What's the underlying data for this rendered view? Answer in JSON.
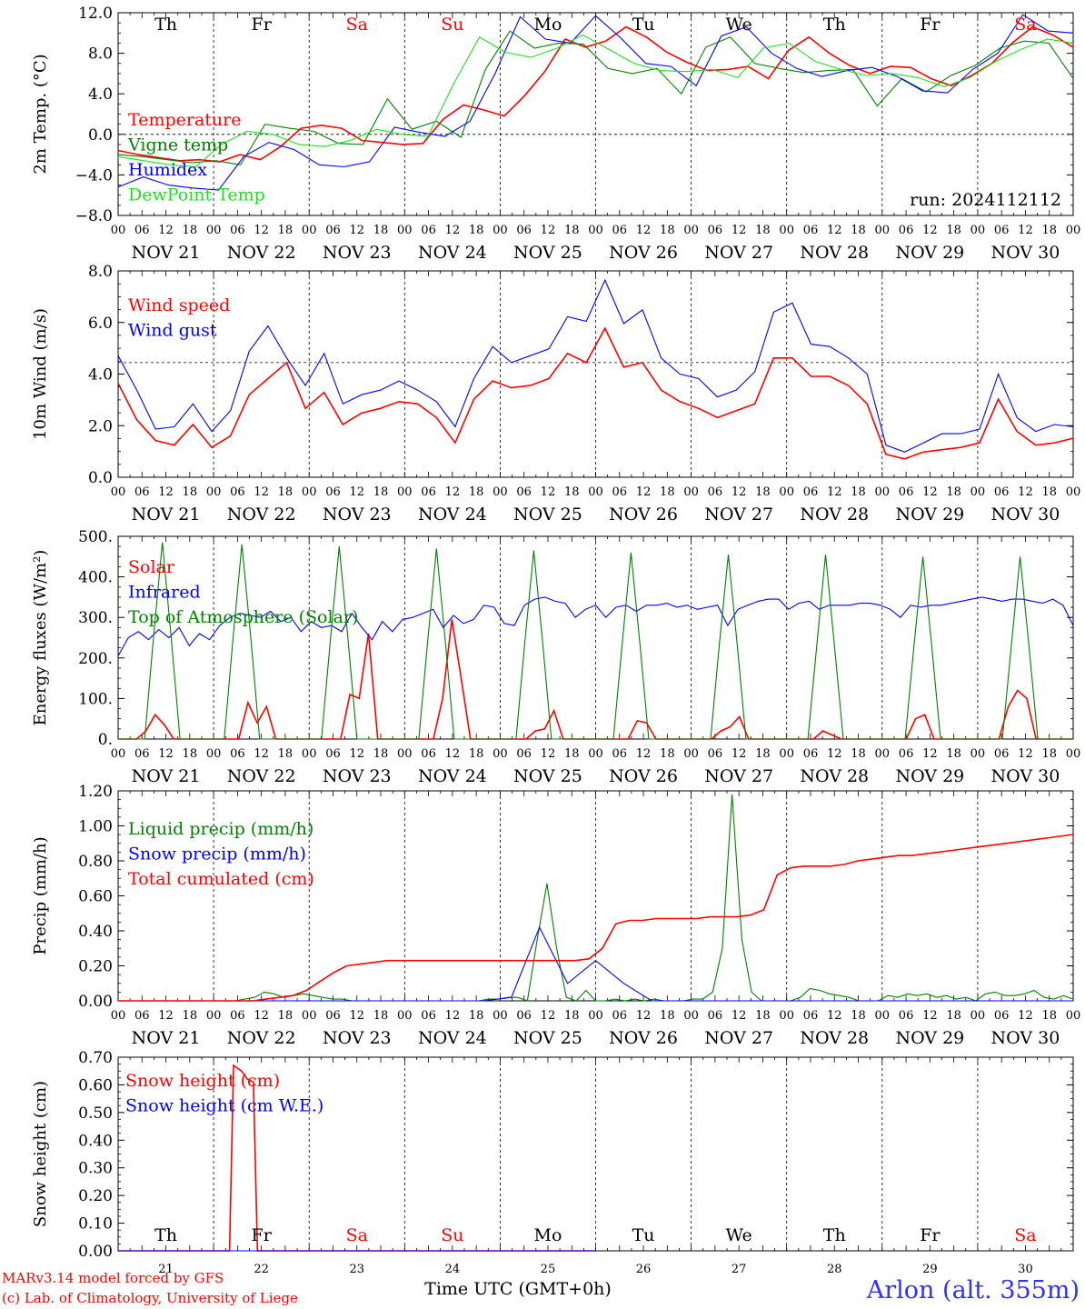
{
  "run_label": "run: 2024112112",
  "footer": {
    "model": "MARv3.14 model forced by GFS",
    "copyright": "(c) Lab. of Climatology, University of Liege",
    "xlabel": "Time UTC (GMT+0h)",
    "station": "Arlon (alt. 355m)"
  },
  "colors": {
    "red": "#ff0000",
    "green": "#008000",
    "blue": "#0000ff",
    "lightgreen": "#22dd22",
    "weekend": "#ff0000",
    "weekday": "#000000"
  },
  "chart_data": [
    {
      "id": "temperature",
      "type": "line",
      "ylabel": "2m Temp. (°C)",
      "ylim": [
        -8,
        12
      ],
      "yticks": [
        "−8.0",
        "−4.0",
        "0.0",
        "4.0",
        "8.0",
        "12.0"
      ],
      "ref_line": 0,
      "day_names": [
        "Th",
        "Fr",
        "Sa",
        "Su",
        "Mo",
        "Tu",
        "We",
        "Th",
        "Fr",
        "Sa"
      ],
      "weekend": [
        false,
        false,
        true,
        true,
        false,
        false,
        false,
        false,
        false,
        true
      ],
      "x_hours_per_point": 6,
      "series": [
        {
          "name": "Temperature",
          "color": "red",
          "values": [
            -1.6,
            -2.0,
            -2.3,
            -2.6,
            -2.5,
            -2.7,
            -2.0,
            -2.5,
            -1.2,
            0.6,
            0.9,
            0.6,
            -0.6,
            -0.8,
            -1.0,
            -0.9,
            1.5,
            2.9,
            2.4,
            1.8,
            3.8,
            6.2,
            9.4,
            8.6,
            9.2,
            10.6,
            9.6,
            8.1,
            7.1,
            6.3,
            6.4,
            6.7,
            5.5,
            8.3,
            9.6,
            8.0,
            6.8,
            6.0,
            6.7,
            6.6,
            5.5,
            4.8,
            5.8,
            7.0,
            9.0,
            10.6,
            9.8,
            8.6
          ]
        },
        {
          "name": "Vigne temp",
          "color": "green",
          "values": [
            -2.0,
            -2.2,
            -2.5,
            -2.8,
            -2.6,
            -3.0,
            1.0,
            0.6,
            0.3,
            -0.9,
            -1.0,
            3.5,
            0.5,
            1.3,
            -0.3,
            6.4,
            10.2,
            8.5,
            9.0,
            8.9,
            6.5,
            6.0,
            6.5,
            4.0,
            8.6,
            9.6,
            7.0,
            6.5,
            6.1,
            6.3,
            6.4,
            2.8,
            5.5,
            4.2,
            5.8,
            6.8,
            8.5,
            9.2,
            9.0,
            5.5
          ]
        },
        {
          "name": "Humidex",
          "color": "blue",
          "values": [
            -5.2,
            -4.2,
            -5.0,
            -5.3,
            -5.5,
            -2.2,
            -0.8,
            -1.5,
            -3.0,
            -3.2,
            -2.7,
            0.7,
            0.2,
            -0.2,
            1.3,
            6.0,
            11.6,
            9.4,
            9.0,
            11.7,
            9.5,
            7.0,
            6.7,
            4.8,
            9.7,
            10.6,
            8.0,
            6.5,
            5.7,
            6.3,
            6.6,
            5.7,
            4.3,
            4.1,
            6.4,
            8.0,
            11.8,
            10.2,
            10.0
          ]
        },
        {
          "name": "DewPoint Temp",
          "color": "lightgreen",
          "values": [
            -2.2,
            -2.6,
            -3.0,
            -3.2,
            -1.0,
            0.3,
            0.0,
            -1.0,
            -1.2,
            -0.6,
            0.5,
            0.0,
            -0.2,
            5.0,
            9.6,
            8.1,
            7.6,
            8.5,
            9.8,
            8.4,
            7.0,
            6.3,
            6.2,
            6.4,
            5.6,
            8.5,
            9.0,
            7.2,
            6.4,
            5.8,
            6.0,
            5.6,
            4.7,
            5.6,
            7.2,
            8.4,
            9.4,
            9.0
          ]
        }
      ]
    },
    {
      "id": "wind",
      "type": "line",
      "ylabel": "10m Wind (m/s)",
      "ylim": [
        0,
        9
      ],
      "yticks": [
        "0.0",
        "2.0",
        "4.0",
        "6.0",
        "8.0"
      ],
      "ref_line": 5,
      "x_hours_per_point": 6,
      "series": [
        {
          "name": "Wind speed",
          "color": "red",
          "values": [
            4.1,
            2.5,
            1.6,
            1.4,
            2.3,
            1.3,
            1.8,
            3.6,
            4.3,
            5.0,
            3.0,
            3.7,
            2.3,
            2.8,
            3.0,
            3.3,
            3.2,
            2.6,
            1.5,
            3.4,
            4.2,
            3.9,
            4.0,
            4.3,
            5.4,
            5.0,
            6.5,
            4.8,
            5.0,
            3.8,
            3.3,
            3.0,
            2.6,
            2.9,
            3.2,
            5.2,
            5.2,
            4.4,
            4.4,
            4.0,
            3.2,
            1.0,
            0.8,
            1.1,
            1.2,
            1.3,
            1.5,
            3.4,
            2.0,
            1.4,
            1.5,
            1.7
          ]
        },
        {
          "name": "Wind gust",
          "color": "blue",
          "values": [
            5.3,
            3.8,
            2.1,
            2.2,
            3.2,
            2.0,
            2.9,
            5.5,
            6.6,
            5.2,
            4.0,
            5.4,
            3.2,
            3.6,
            3.8,
            4.2,
            3.8,
            3.3,
            2.2,
            4.3,
            5.7,
            5.0,
            5.3,
            5.6,
            7.0,
            6.8,
            8.6,
            6.7,
            7.3,
            5.2,
            4.5,
            4.3,
            3.5,
            3.8,
            4.6,
            7.2,
            7.6,
            5.8,
            5.7,
            5.2,
            4.5,
            1.4,
            1.1,
            1.5,
            1.9,
            1.9,
            2.1,
            4.5,
            2.6,
            2.0,
            2.3,
            2.2
          ]
        }
      ]
    },
    {
      "id": "energy",
      "type": "line",
      "ylabel": "Energy fluxes (W/m²)",
      "ylim": [
        0,
        500
      ],
      "yticks": [
        "0.",
        "100.",
        "200.",
        "300.",
        "400.",
        "500."
      ],
      "x_hours_per_point": 3,
      "series": [
        {
          "name": "Solar",
          "color": "red",
          "values": [
            0,
            0,
            0,
            20,
            60,
            35,
            0,
            0,
            0,
            0,
            0,
            0,
            0,
            0,
            90,
            40,
            80,
            0,
            0,
            0,
            0,
            0,
            0,
            0,
            0,
            110,
            100,
            260,
            0,
            0,
            0,
            0,
            0,
            0,
            0,
            100,
            295,
            150,
            0,
            0,
            0,
            0,
            0,
            0,
            0,
            20,
            25,
            70,
            0,
            0,
            0,
            0,
            0,
            0,
            0,
            0,
            45,
            40,
            0,
            0,
            0,
            0,
            0,
            0,
            0,
            20,
            30,
            55,
            0,
            0,
            0,
            0,
            0,
            0,
            0,
            0,
            20,
            10,
            0,
            0,
            0,
            0,
            0,
            0,
            0,
            0,
            50,
            60,
            0,
            0,
            0,
            0,
            0,
            0,
            0,
            0,
            80,
            120,
            100,
            0,
            0,
            0,
            0,
            0
          ]
        },
        {
          "name": "Infrared",
          "color": "blue",
          "values": [
            205,
            250,
            265,
            245,
            270,
            250,
            275,
            230,
            260,
            245,
            280,
            300,
            310,
            305,
            300,
            315,
            290,
            300,
            265,
            290,
            275,
            280,
            265,
            310,
            275,
            245,
            290,
            265,
            295,
            300,
            310,
            320,
            275,
            305,
            285,
            295,
            330,
            325,
            285,
            280,
            330,
            345,
            350,
            340,
            335,
            300,
            320,
            330,
            300,
            325,
            330,
            315,
            330,
            330,
            335,
            325,
            330,
            320,
            325,
            330,
            280,
            320,
            330,
            340,
            345,
            345,
            320,
            335,
            340,
            320,
            330,
            330,
            330,
            335,
            335,
            330,
            320,
            300,
            330,
            325,
            330,
            330,
            335,
            340,
            345,
            350,
            345,
            340,
            345,
            345,
            340,
            335,
            345,
            330,
            280
          ]
        },
        {
          "name": "Top of Atmosphere (Solar)",
          "color": "green",
          "values": [
            0,
            0,
            0,
            0,
            250,
            485,
            250,
            0,
            0,
            0,
            0,
            0,
            0,
            250,
            480,
            250,
            0,
            0,
            0,
            0,
            0,
            0,
            0,
            0,
            245,
            475,
            245,
            0,
            0,
            0,
            0,
            0,
            0,
            0,
            0,
            240,
            470,
            240,
            0,
            0,
            0,
            0,
            0,
            0,
            0,
            0,
            240,
            465,
            240,
            0,
            0,
            0,
            0,
            0,
            0,
            0,
            0,
            235,
            460,
            235,
            0,
            0,
            0,
            0,
            0,
            0,
            0,
            0,
            235,
            455,
            235,
            0,
            0,
            0,
            0,
            0,
            0,
            0,
            0,
            230,
            455,
            230,
            0,
            0,
            0,
            0,
            0,
            0,
            0,
            0,
            230,
            450,
            230,
            0,
            0,
            0,
            0,
            0,
            0,
            0,
            0,
            230,
            450,
            230,
            0,
            0,
            0,
            0,
            0
          ]
        }
      ]
    },
    {
      "id": "precip",
      "type": "line",
      "ylabel": "Precip (mm/h)",
      "ylim": [
        0,
        1.2
      ],
      "yticks": [
        "0.00",
        "0.20",
        "0.40",
        "0.60",
        "0.80",
        "1.00",
        "1.20"
      ],
      "x_hours_per_point": 3,
      "series": [
        {
          "name": "Liquid precip (mm/h)",
          "color": "green",
          "values": [
            0,
            0,
            0,
            0,
            0,
            0,
            0,
            0,
            0,
            0,
            0,
            0,
            0,
            0.01,
            0.02,
            0.05,
            0.04,
            0.02,
            0.03,
            0.04,
            0.03,
            0.02,
            0.01,
            0.01,
            0,
            0,
            0,
            0,
            0,
            0,
            0,
            0,
            0,
            0,
            0,
            0,
            0,
            0,
            0.01,
            0.01,
            0.02,
            0.02,
            0,
            0.35,
            0.67,
            0.3,
            0.02,
            0,
            0.06,
            0,
            0,
            0.01,
            0,
            0.01,
            0,
            0.01,
            0,
            0,
            0,
            0.01,
            0.01,
            0.05,
            0.3,
            1.18,
            0.35,
            0.05,
            0,
            0,
            0,
            0,
            0.02,
            0.07,
            0.06,
            0.04,
            0.03,
            0.02,
            0,
            0,
            0,
            0.03,
            0.02,
            0.04,
            0.03,
            0.04,
            0.02,
            0.03,
            0.01,
            0.02,
            0,
            0.04,
            0.05,
            0.03,
            0.03,
            0.04,
            0.06,
            0.02,
            0.01,
            0.03,
            0.01
          ]
        },
        {
          "name": "Snow precip (mm/h)",
          "color": "blue",
          "values": [
            0,
            0,
            0,
            0,
            0,
            0,
            0,
            0,
            0,
            0,
            0,
            0,
            0,
            0,
            0.02,
            0.42,
            0.1,
            0.23,
            0.1,
            0,
            0,
            0,
            0,
            0,
            0,
            0,
            0,
            0,
            0,
            0,
            0,
            0,
            0,
            0,
            0
          ]
        },
        {
          "name": "Total cumulated (cm)",
          "color": "red",
          "values": [
            0,
            0,
            0,
            0,
            0,
            0,
            0,
            0,
            0,
            0,
            0,
            0.01,
            0.02,
            0.03,
            0.06,
            0.11,
            0.16,
            0.2,
            0.21,
            0.22,
            0.23,
            0.23,
            0.23,
            0.23,
            0.23,
            0.23,
            0.23,
            0.23,
            0.23,
            0.23,
            0.23,
            0.23,
            0.23,
            0.23,
            0.23,
            0.24,
            0.3,
            0.44,
            0.46,
            0.46,
            0.47,
            0.47,
            0.47,
            0.47,
            0.48,
            0.48,
            0.48,
            0.49,
            0.52,
            0.72,
            0.76,
            0.77,
            0.77,
            0.77,
            0.78,
            0.8,
            0.81,
            0.82,
            0.83,
            0.83,
            0.84,
            0.85,
            0.86,
            0.87,
            0.88,
            0.89,
            0.9,
            0.91,
            0.92,
            0.93,
            0.94,
            0.95
          ]
        }
      ]
    },
    {
      "id": "snow",
      "type": "line",
      "ylabel": "Snow height (cm)",
      "ylim": [
        0,
        0.7
      ],
      "yticks": [
        "0.00",
        "0.10",
        "0.20",
        "0.30",
        "0.40",
        "0.50",
        "0.60",
        "0.70"
      ],
      "day_numbers": [
        "21",
        "22",
        "23",
        "24",
        "25",
        "26",
        "27",
        "28",
        "29",
        "30"
      ],
      "series": [
        {
          "name": "Snow height (cm)",
          "color": "red",
          "points": [
            [
              0,
              0
            ],
            [
              28,
              0
            ],
            [
              29,
              0.67
            ],
            [
              31,
              0.65
            ],
            [
              32.5,
              0.62
            ],
            [
              34,
              0.61
            ],
            [
              35,
              0
            ],
            [
              120,
              0
            ]
          ]
        },
        {
          "name": "Snow height (cm W.E.)",
          "color": "blue",
          "points": [
            [
              0,
              0
            ],
            [
              120,
              0
            ]
          ]
        }
      ]
    }
  ],
  "x_axis": {
    "hour_ticks": [
      "00",
      "06",
      "12",
      "18"
    ],
    "end_tick": "00",
    "date_labels": [
      "NOV 21",
      "NOV 22",
      "NOV 23",
      "NOV 24",
      "NOV 25",
      "NOV 26",
      "NOV 27",
      "NOV 28",
      "NOV 29",
      "NOV 30"
    ]
  }
}
